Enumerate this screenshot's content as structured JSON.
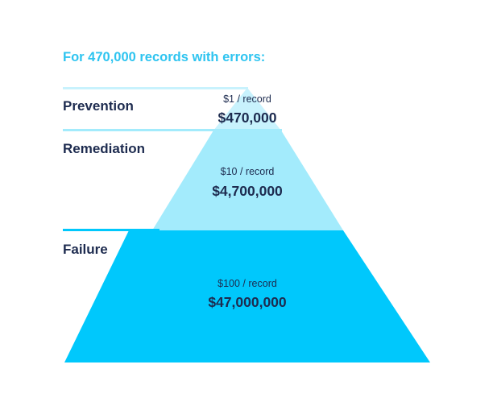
{
  "heading": "For 470,000 records with errors:",
  "colors": {
    "heading": "#2ec4f0",
    "text": "#1d2b4f",
    "prevention_tier": "#c8f2fd",
    "remediation_tier": "#a3ebfc",
    "failure_tier": "#00c8fc"
  },
  "tiers": [
    {
      "label": "Prevention",
      "rate": "$1 / record",
      "total": "$470,000"
    },
    {
      "label": "Remediation",
      "rate": "$10 / record",
      "total": "$4,700,000"
    },
    {
      "label": "Failure",
      "rate": "$100 / record",
      "total": "$47,000,000"
    }
  ]
}
